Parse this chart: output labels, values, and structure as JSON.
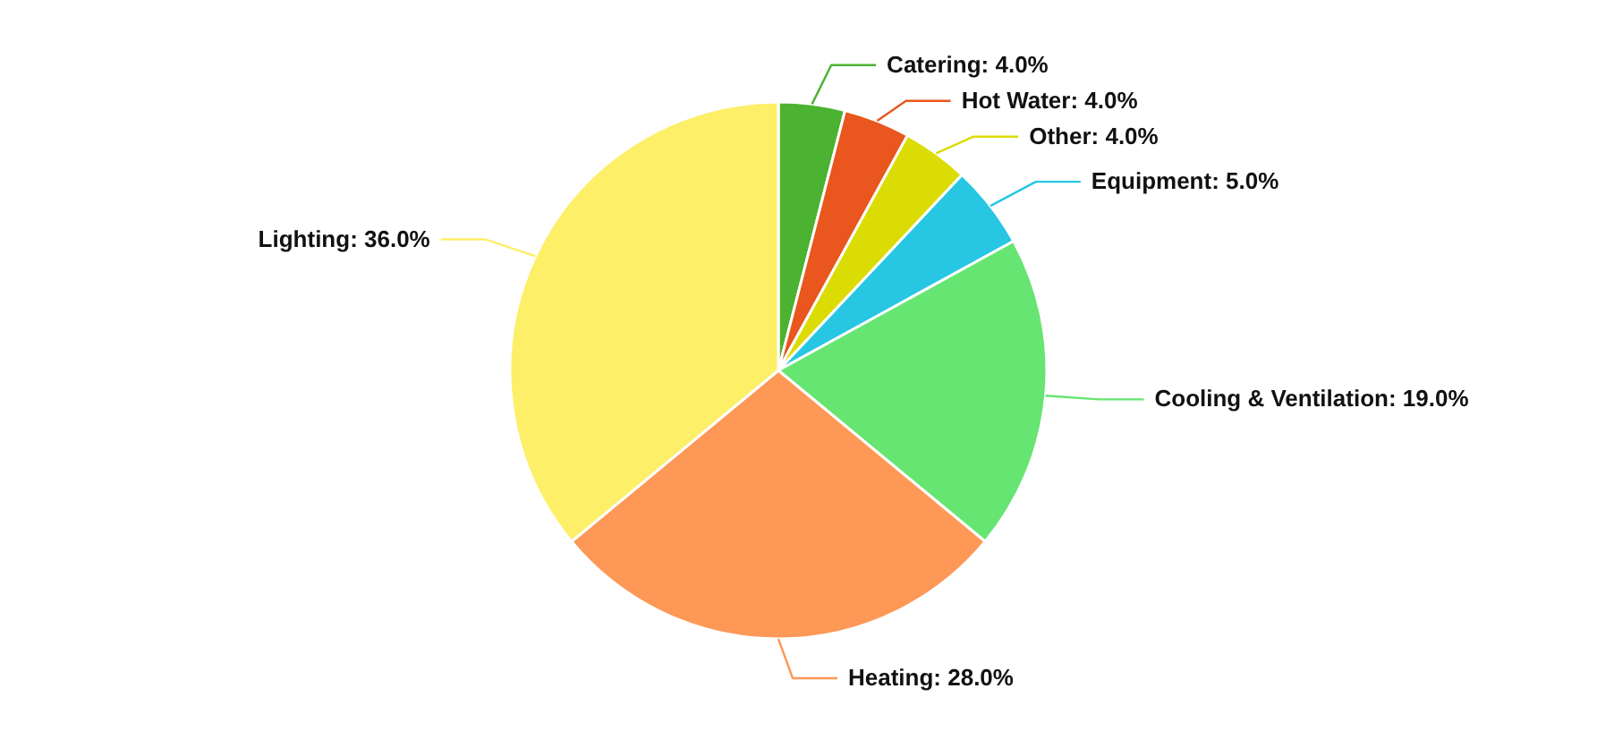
{
  "chart_data": {
    "type": "pie",
    "categories": [
      "Catering",
      "Hot Water",
      "Other",
      "Equipment",
      "Cooling & Ventilation",
      "Heating",
      "Lighting"
    ],
    "values": [
      4,
      4,
      4,
      5,
      19,
      28,
      36
    ],
    "colors": [
      "#4cb231",
      "#e9561e",
      "#dcdc05",
      "#27c7e3",
      "#66e572",
      "#fd9856",
      "#fdef68"
    ],
    "value_labels": [
      "4.0%",
      "4.0%",
      "4.0%",
      "5.0%",
      "19.0%",
      "28.0%",
      "36.0%"
    ]
  }
}
